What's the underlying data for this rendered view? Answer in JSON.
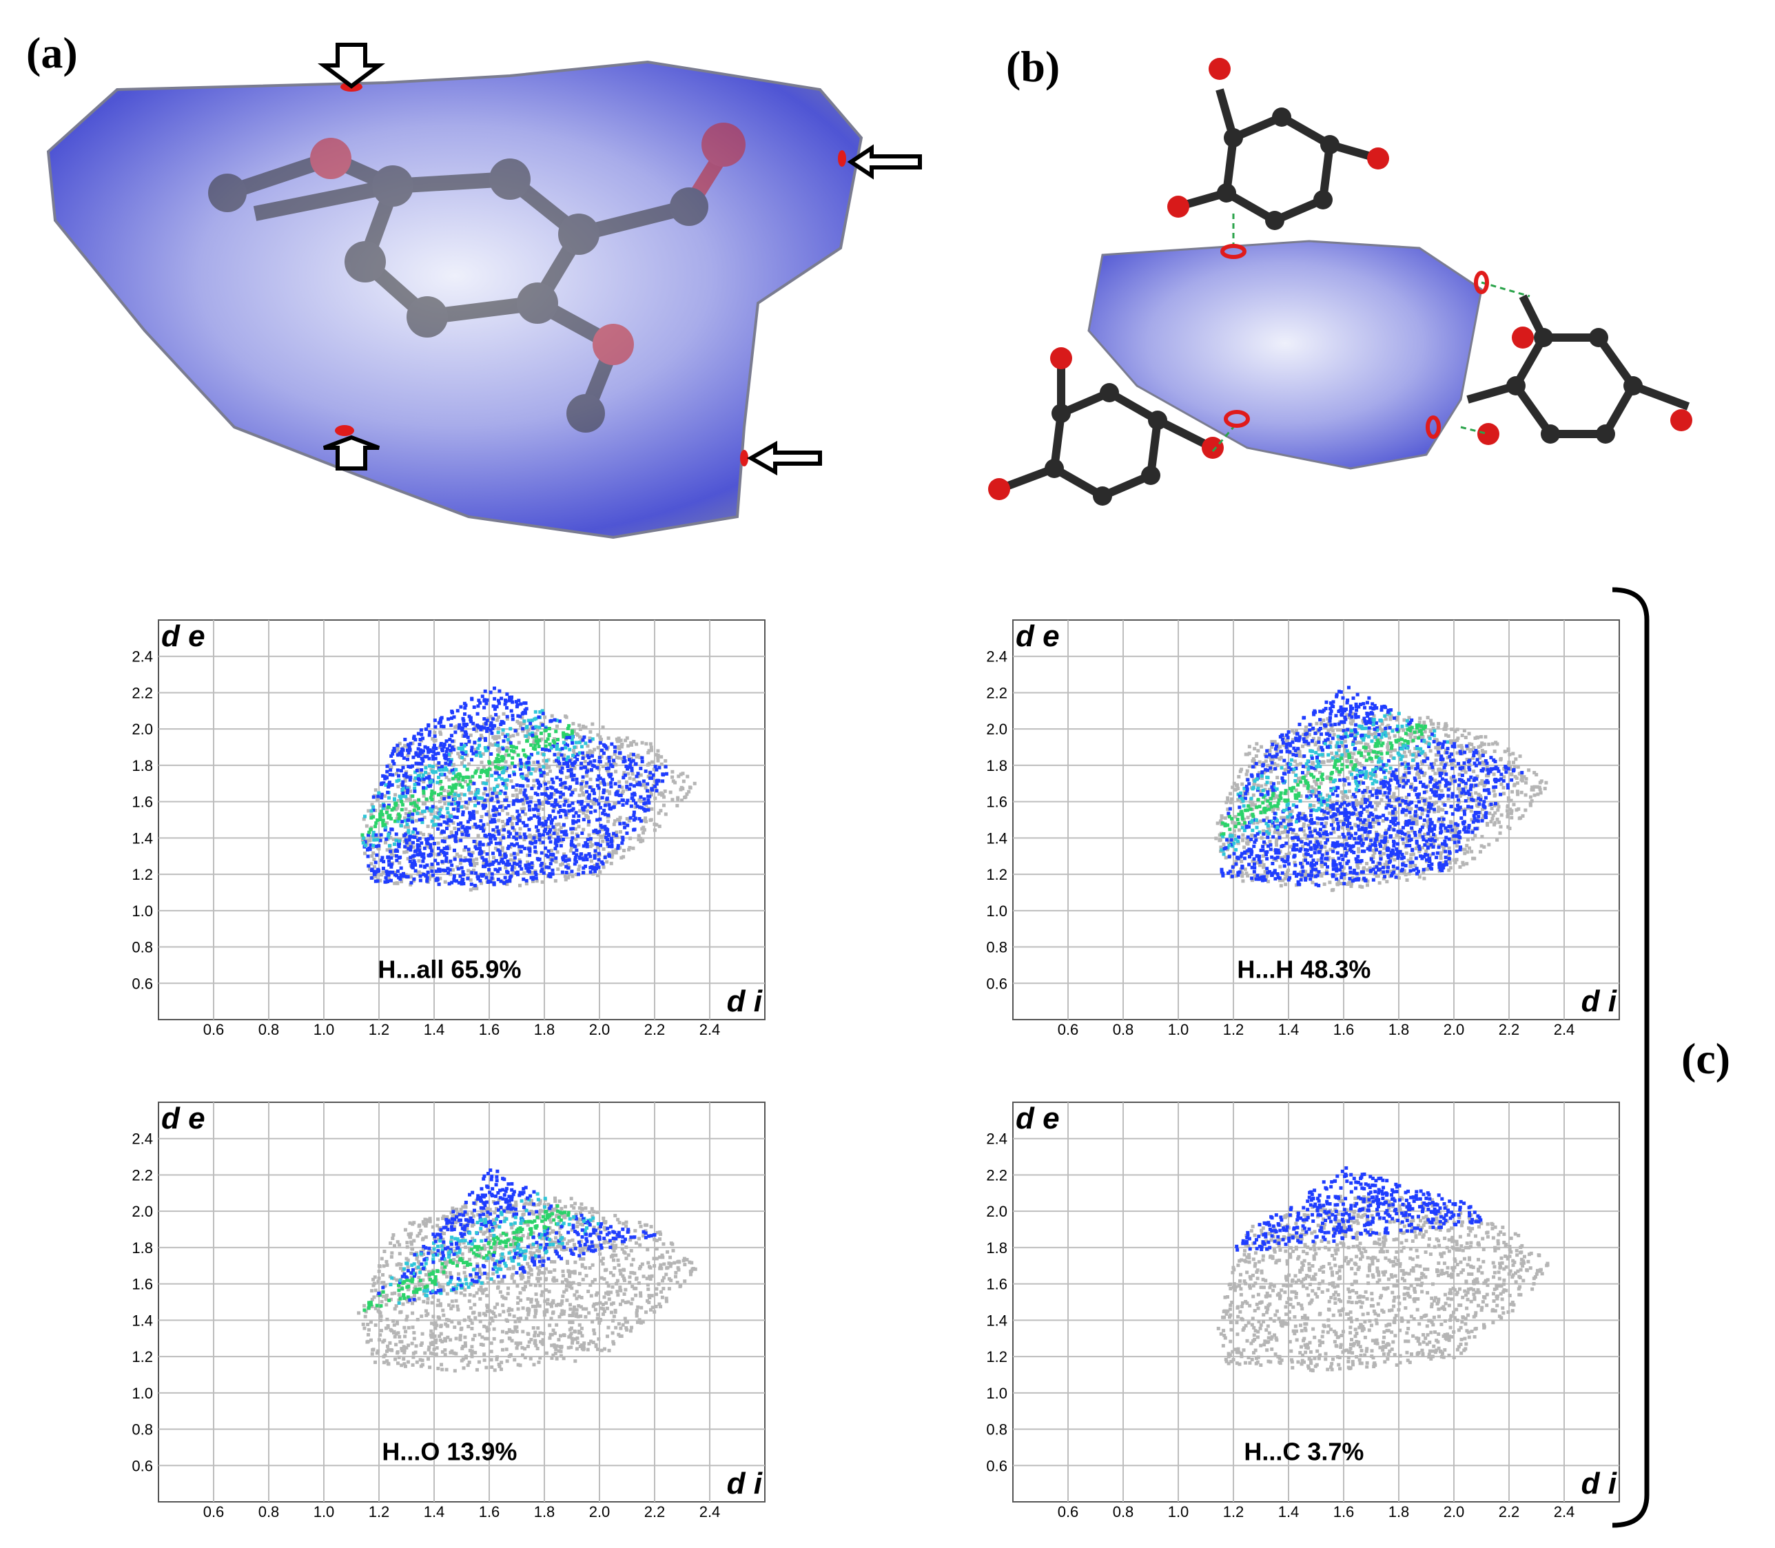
{
  "panels": {
    "a": "(a)",
    "b": "(b)",
    "c": "(c)"
  },
  "colors": {
    "surface": "#6a6fd6",
    "surface_light": "#d9dcf7",
    "red_spot": "#e01b1b",
    "points_blue": "#1f3dff",
    "points_cyan": "#2fc6d8",
    "points_green": "#2bd36a",
    "grey_points": "#b5b5b5",
    "grid": "#bdbdbd",
    "atom_c": "#2b2b2b",
    "atom_o": "#d81a1a",
    "atom_h": "#e8e8e8"
  },
  "chart_data": [
    {
      "type": "scatter",
      "title": "",
      "annotation": "H...all   65.9%",
      "ylabel": "d e",
      "xlabel": "d i",
      "xticks": [
        "0.6",
        "0.8",
        "1.0",
        "1.2",
        "1.4",
        "1.6",
        "1.8",
        "2.0",
        "2.2",
        "2.4"
      ],
      "yticks": [
        "2.4",
        "2.2",
        "2.0",
        "1.8",
        "1.6",
        "1.4",
        "1.2",
        "1.0",
        "0.8",
        "0.6"
      ],
      "xlim": [
        0.4,
        2.6
      ],
      "ylim": [
        0.4,
        2.6
      ],
      "grid": true,
      "grey_region": [
        [
          1.12,
          1.45
        ],
        [
          1.17,
          1.17
        ],
        [
          1.55,
          1.12
        ],
        [
          2.0,
          1.2
        ],
        [
          2.2,
          1.45
        ],
        [
          2.35,
          1.7
        ],
        [
          2.2,
          1.92
        ],
        [
          1.9,
          2.08
        ],
        [
          1.6,
          2.1
        ],
        [
          1.25,
          1.92
        ]
      ],
      "colored_region": [
        [
          1.12,
          1.45
        ],
        [
          1.17,
          1.17
        ],
        [
          1.55,
          1.14
        ],
        [
          1.98,
          1.22
        ],
        [
          2.15,
          1.5
        ],
        [
          2.25,
          1.8
        ],
        [
          2.0,
          1.95
        ],
        [
          1.6,
          2.25
        ],
        [
          1.25,
          1.92
        ]
      ]
    },
    {
      "type": "scatter",
      "title": "",
      "annotation": "H...H   48.3%",
      "ylabel": "d e",
      "xlabel": "d i",
      "xticks": [
        "0.6",
        "0.8",
        "1.0",
        "1.2",
        "1.4",
        "1.6",
        "1.8",
        "2.0",
        "2.2",
        "2.4"
      ],
      "yticks": [
        "2.4",
        "2.2",
        "2.0",
        "1.8",
        "1.6",
        "1.4",
        "1.2",
        "1.0",
        "0.8",
        "0.6"
      ],
      "xlim": [
        0.4,
        2.6
      ],
      "ylim": [
        0.4,
        2.6
      ],
      "grid": true,
      "grey_region": [
        [
          1.12,
          1.45
        ],
        [
          1.17,
          1.17
        ],
        [
          1.55,
          1.12
        ],
        [
          2.0,
          1.2
        ],
        [
          2.2,
          1.45
        ],
        [
          2.35,
          1.7
        ],
        [
          2.2,
          1.92
        ],
        [
          1.9,
          2.08
        ],
        [
          1.6,
          2.1
        ],
        [
          1.25,
          1.92
        ]
      ],
      "colored_region": [
        [
          1.15,
          1.2
        ],
        [
          1.5,
          1.14
        ],
        [
          1.95,
          1.22
        ],
        [
          2.1,
          1.5
        ],
        [
          2.25,
          1.78
        ],
        [
          1.95,
          1.98
        ],
        [
          1.6,
          2.25
        ],
        [
          1.3,
          1.9
        ],
        [
          1.15,
          1.5
        ]
      ]
    },
    {
      "type": "scatter",
      "title": "",
      "annotation": "H...O   13.9%",
      "ylabel": "d e",
      "xlabel": "d i",
      "xticks": [
        "0.6",
        "0.8",
        "1.0",
        "1.2",
        "1.4",
        "1.6",
        "1.8",
        "2.0",
        "2.2",
        "2.4"
      ],
      "yticks": [
        "2.4",
        "2.2",
        "2.0",
        "1.8",
        "1.6",
        "1.4",
        "1.2",
        "1.0",
        "0.8",
        "0.6"
      ],
      "xlim": [
        0.4,
        2.6
      ],
      "ylim": [
        0.4,
        2.6
      ],
      "grid": true,
      "grey_region": [
        [
          1.12,
          1.45
        ],
        [
          1.17,
          1.17
        ],
        [
          1.55,
          1.12
        ],
        [
          2.0,
          1.2
        ],
        [
          2.2,
          1.45
        ],
        [
          2.35,
          1.7
        ],
        [
          2.2,
          1.92
        ],
        [
          1.9,
          2.08
        ],
        [
          1.6,
          2.1
        ],
        [
          1.25,
          1.92
        ]
      ],
      "colored_region": [
        [
          1.12,
          1.45
        ],
        [
          1.6,
          1.62
        ],
        [
          2.2,
          1.88
        ],
        [
          1.9,
          2.0
        ],
        [
          1.6,
          2.25
        ],
        [
          1.4,
          1.9
        ]
      ]
    },
    {
      "type": "scatter",
      "title": "",
      "annotation": "H...C   3.7%",
      "ylabel": "d e",
      "xlabel": "d i",
      "xticks": [
        "0.6",
        "0.8",
        "1.0",
        "1.2",
        "1.4",
        "1.6",
        "1.8",
        "2.0",
        "2.2",
        "2.4"
      ],
      "yticks": [
        "2.4",
        "2.2",
        "2.0",
        "1.8",
        "1.6",
        "1.4",
        "1.2",
        "1.0",
        "0.8",
        "0.6"
      ],
      "xlim": [
        0.4,
        2.6
      ],
      "ylim": [
        0.4,
        2.6
      ],
      "grid": true,
      "grey_region": [
        [
          1.12,
          1.45
        ],
        [
          1.17,
          1.17
        ],
        [
          1.55,
          1.12
        ],
        [
          2.0,
          1.2
        ],
        [
          2.2,
          1.45
        ],
        [
          2.35,
          1.7
        ],
        [
          2.2,
          1.92
        ],
        [
          1.9,
          2.08
        ],
        [
          1.6,
          2.1
        ],
        [
          1.25,
          1.92
        ]
      ],
      "colored_region": [
        [
          1.2,
          1.78
        ],
        [
          1.6,
          1.85
        ],
        [
          2.1,
          1.95
        ],
        [
          2.05,
          2.05
        ],
        [
          1.6,
          2.25
        ],
        [
          1.2,
          1.85
        ]
      ]
    }
  ]
}
